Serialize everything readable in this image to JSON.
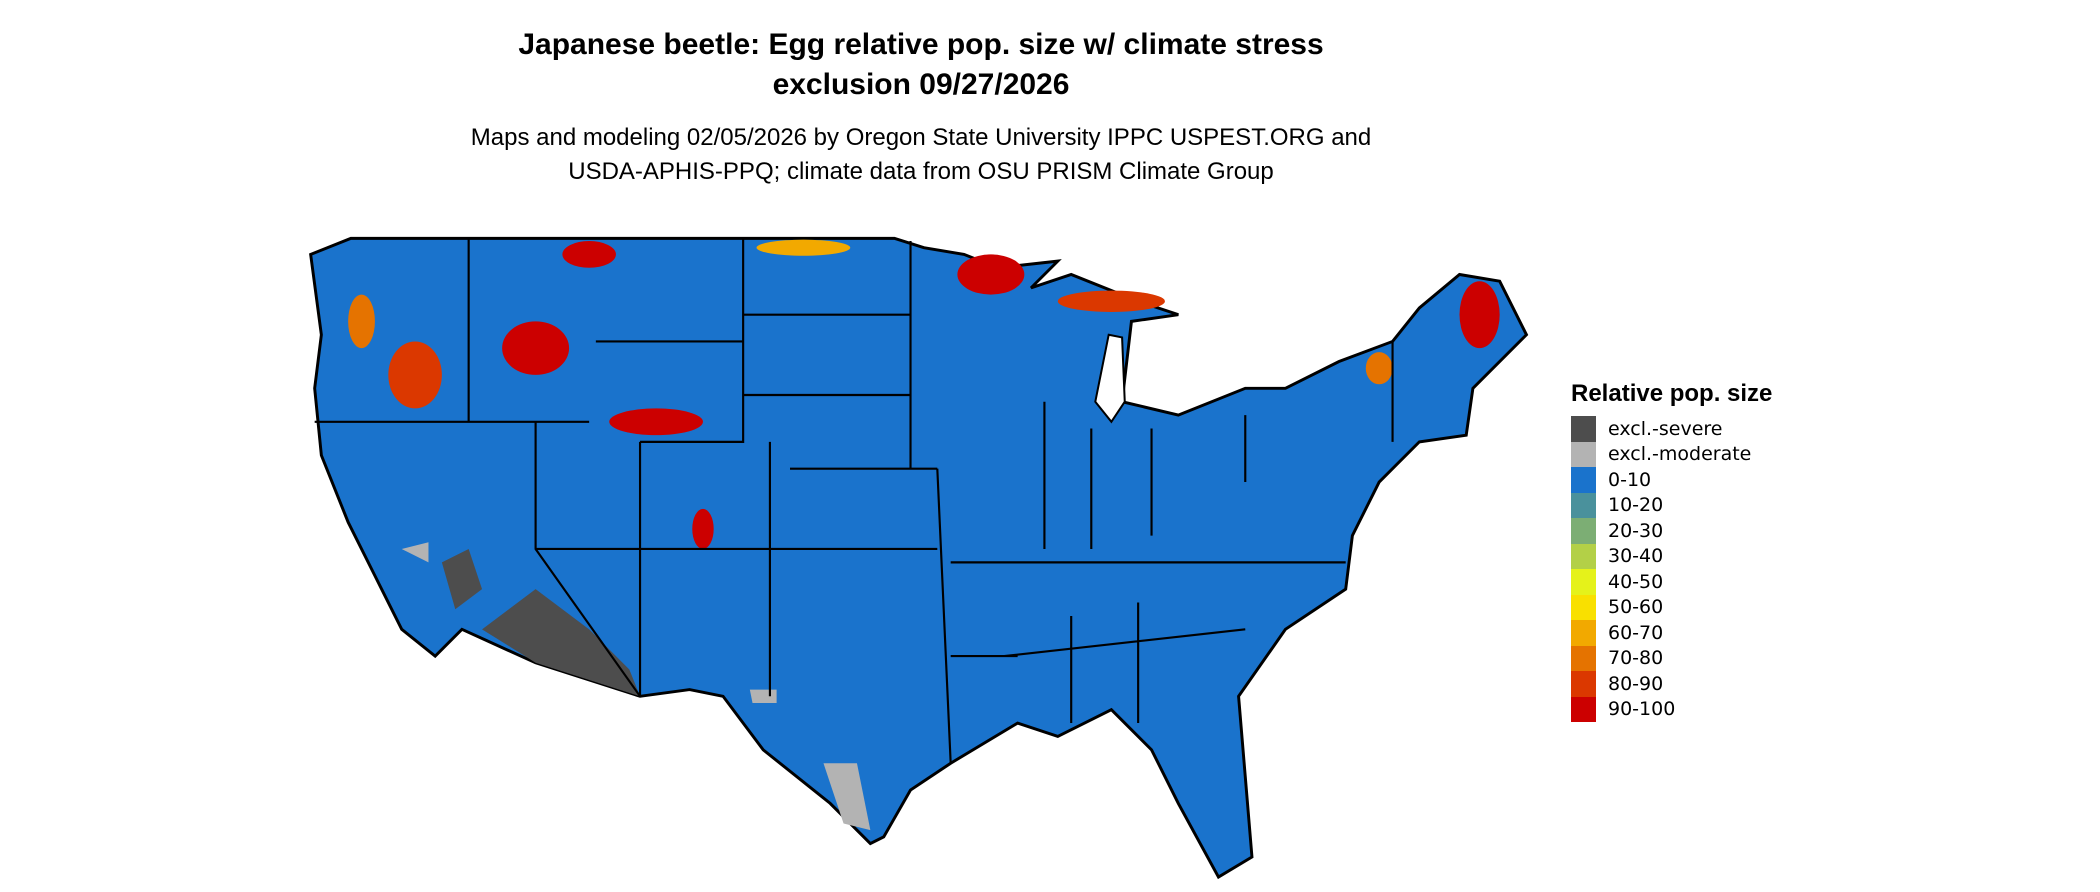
{
  "title": {
    "line1": "Japanese beetle: Egg relative pop. size w/ climate stress",
    "line2": "exclusion 09/27/2026"
  },
  "subtitle": {
    "line1": "Maps and modeling 02/05/2026 by Oregon State University IPPC USPEST.ORG and",
    "line2": "USDA-APHIS-PPQ; climate data from OSU PRISM Climate Group"
  },
  "legend": {
    "title": "Relative pop. size",
    "items": [
      {
        "label": "excl.-severe",
        "color": "#4d4d4d"
      },
      {
        "label": "excl.-moderate",
        "color": "#b3b3b3"
      },
      {
        "label": "0-10",
        "color": "#1a73cc"
      },
      {
        "label": "10-20",
        "color": "#4a919c"
      },
      {
        "label": "20-30",
        "color": "#7cae74"
      },
      {
        "label": "30-40",
        "color": "#b3d047"
      },
      {
        "label": "40-50",
        "color": "#e5f21a"
      },
      {
        "label": "50-60",
        "color": "#f9e000"
      },
      {
        "label": "60-70",
        "color": "#f2a900"
      },
      {
        "label": "70-80",
        "color": "#e57300"
      },
      {
        "label": "80-90",
        "color": "#db3800"
      },
      {
        "label": "90-100",
        "color": "#cc0000"
      }
    ]
  }
}
